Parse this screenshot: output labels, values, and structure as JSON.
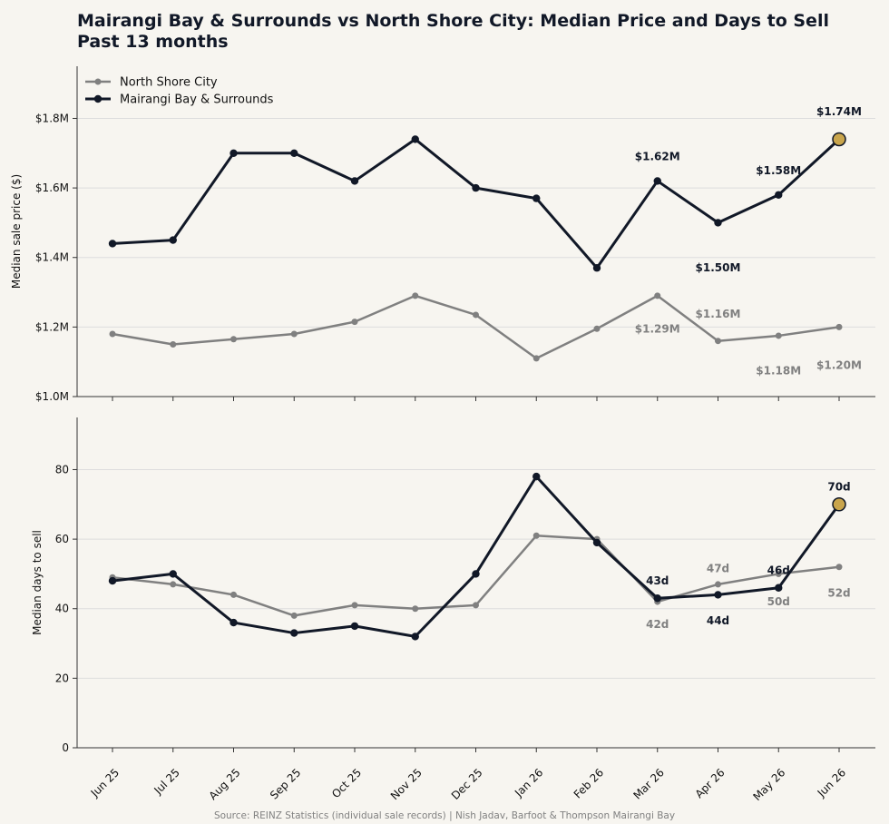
{
  "title_line1": "Mairangi Bay & Surrounds vs North Shore City: Median Price and Days to Sell",
  "title_line2": "Past 13 months",
  "source": "Source: REINZ Statistics (individual sale records) | Nish Jadav, Barfoot & Thompson Mairangi Bay",
  "colors": {
    "mairangi": "#111827",
    "north_shore": "#808080",
    "highlight": "#c9a54c",
    "grid": "#dddddd",
    "background": "#f7f5f0"
  },
  "chart_data": [
    {
      "type": "line",
      "ylabel": "Median sale price ($)",
      "ylim": [
        1.0,
        1.95
      ],
      "yticks": [
        1.0,
        1.2,
        1.4,
        1.6,
        1.8
      ],
      "ytick_labels": [
        "$1.0M",
        "$1.2M",
        "$1.4M",
        "$1.6M",
        "$1.8M"
      ],
      "grid": true,
      "legend": "top-left",
      "categories": [
        "Jun 25",
        "Jul 25",
        "Aug 25",
        "Sep 25",
        "Oct 25",
        "Nov 25",
        "Dec 25",
        "Jan 26",
        "Feb 26",
        "Mar 26",
        "Apr 26",
        "May 26",
        "Jun 26"
      ],
      "series": [
        {
          "name": "North Shore City",
          "values": [
            1.18,
            1.15,
            1.165,
            1.18,
            1.215,
            1.29,
            1.235,
            1.11,
            1.195,
            1.29,
            1.16,
            1.175,
            1.2
          ]
        },
        {
          "name": "Mairangi Bay & Surrounds",
          "values": [
            1.44,
            1.45,
            1.7,
            1.7,
            1.62,
            1.74,
            1.6,
            1.57,
            1.37,
            1.62,
            1.5,
            1.58,
            1.74
          ]
        }
      ],
      "annotations": [
        {
          "series": 1,
          "index": 9,
          "text": "$1.62M",
          "y": 1.69
        },
        {
          "series": 1,
          "index": 10,
          "text": "$1.50M",
          "y": 1.37
        },
        {
          "series": 1,
          "index": 11,
          "text": "$1.58M",
          "y": 1.65
        },
        {
          "series": 1,
          "index": 12,
          "text": "$1.74M",
          "y": 1.82
        },
        {
          "series": 0,
          "index": 9,
          "text": "$1.29M",
          "y": 1.195
        },
        {
          "series": 0,
          "index": 10,
          "text": "$1.16M",
          "y": 1.237
        },
        {
          "series": 0,
          "index": 11,
          "text": "$1.18M",
          "y": 1.075
        },
        {
          "series": 0,
          "index": 12,
          "text": "$1.20M",
          "y": 1.09
        }
      ]
    },
    {
      "type": "line",
      "ylabel": "Median days to sell",
      "ylim": [
        0,
        95
      ],
      "yticks": [
        0,
        20,
        40,
        60,
        80
      ],
      "ytick_labels": [
        "0",
        "20",
        "40",
        "60",
        "80"
      ],
      "grid": true,
      "categories": [
        "Jun 25",
        "Jul 25",
        "Aug 25",
        "Sep 25",
        "Oct 25",
        "Nov 25",
        "Dec 25",
        "Jan 26",
        "Feb 26",
        "Mar 26",
        "Apr 26",
        "May 26",
        "Jun 26"
      ],
      "series": [
        {
          "name": "North Shore City",
          "values": [
            49,
            47,
            44,
            38,
            41,
            40,
            41,
            61,
            60,
            42,
            47,
            50,
            52
          ]
        },
        {
          "name": "Mairangi Bay & Surrounds",
          "values": [
            48,
            50,
            36,
            33,
            35,
            32,
            50,
            78,
            59,
            43,
            44,
            46,
            70
          ]
        }
      ],
      "annotations": [
        {
          "series": 1,
          "index": 9,
          "text": "43d",
          "y": 48
        },
        {
          "series": 1,
          "index": 10,
          "text": "44d",
          "y": 36.5
        },
        {
          "series": 1,
          "index": 11,
          "text": "46d",
          "y": 51
        },
        {
          "series": 1,
          "index": 12,
          "text": "70d",
          "y": 75
        },
        {
          "series": 0,
          "index": 9,
          "text": "42d",
          "y": 35.5
        },
        {
          "series": 0,
          "index": 10,
          "text": "47d",
          "y": 51.5
        },
        {
          "series": 0,
          "index": 11,
          "text": "50d",
          "y": 42
        },
        {
          "series": 0,
          "index": 12,
          "text": "52d",
          "y": 44.5
        }
      ]
    }
  ]
}
